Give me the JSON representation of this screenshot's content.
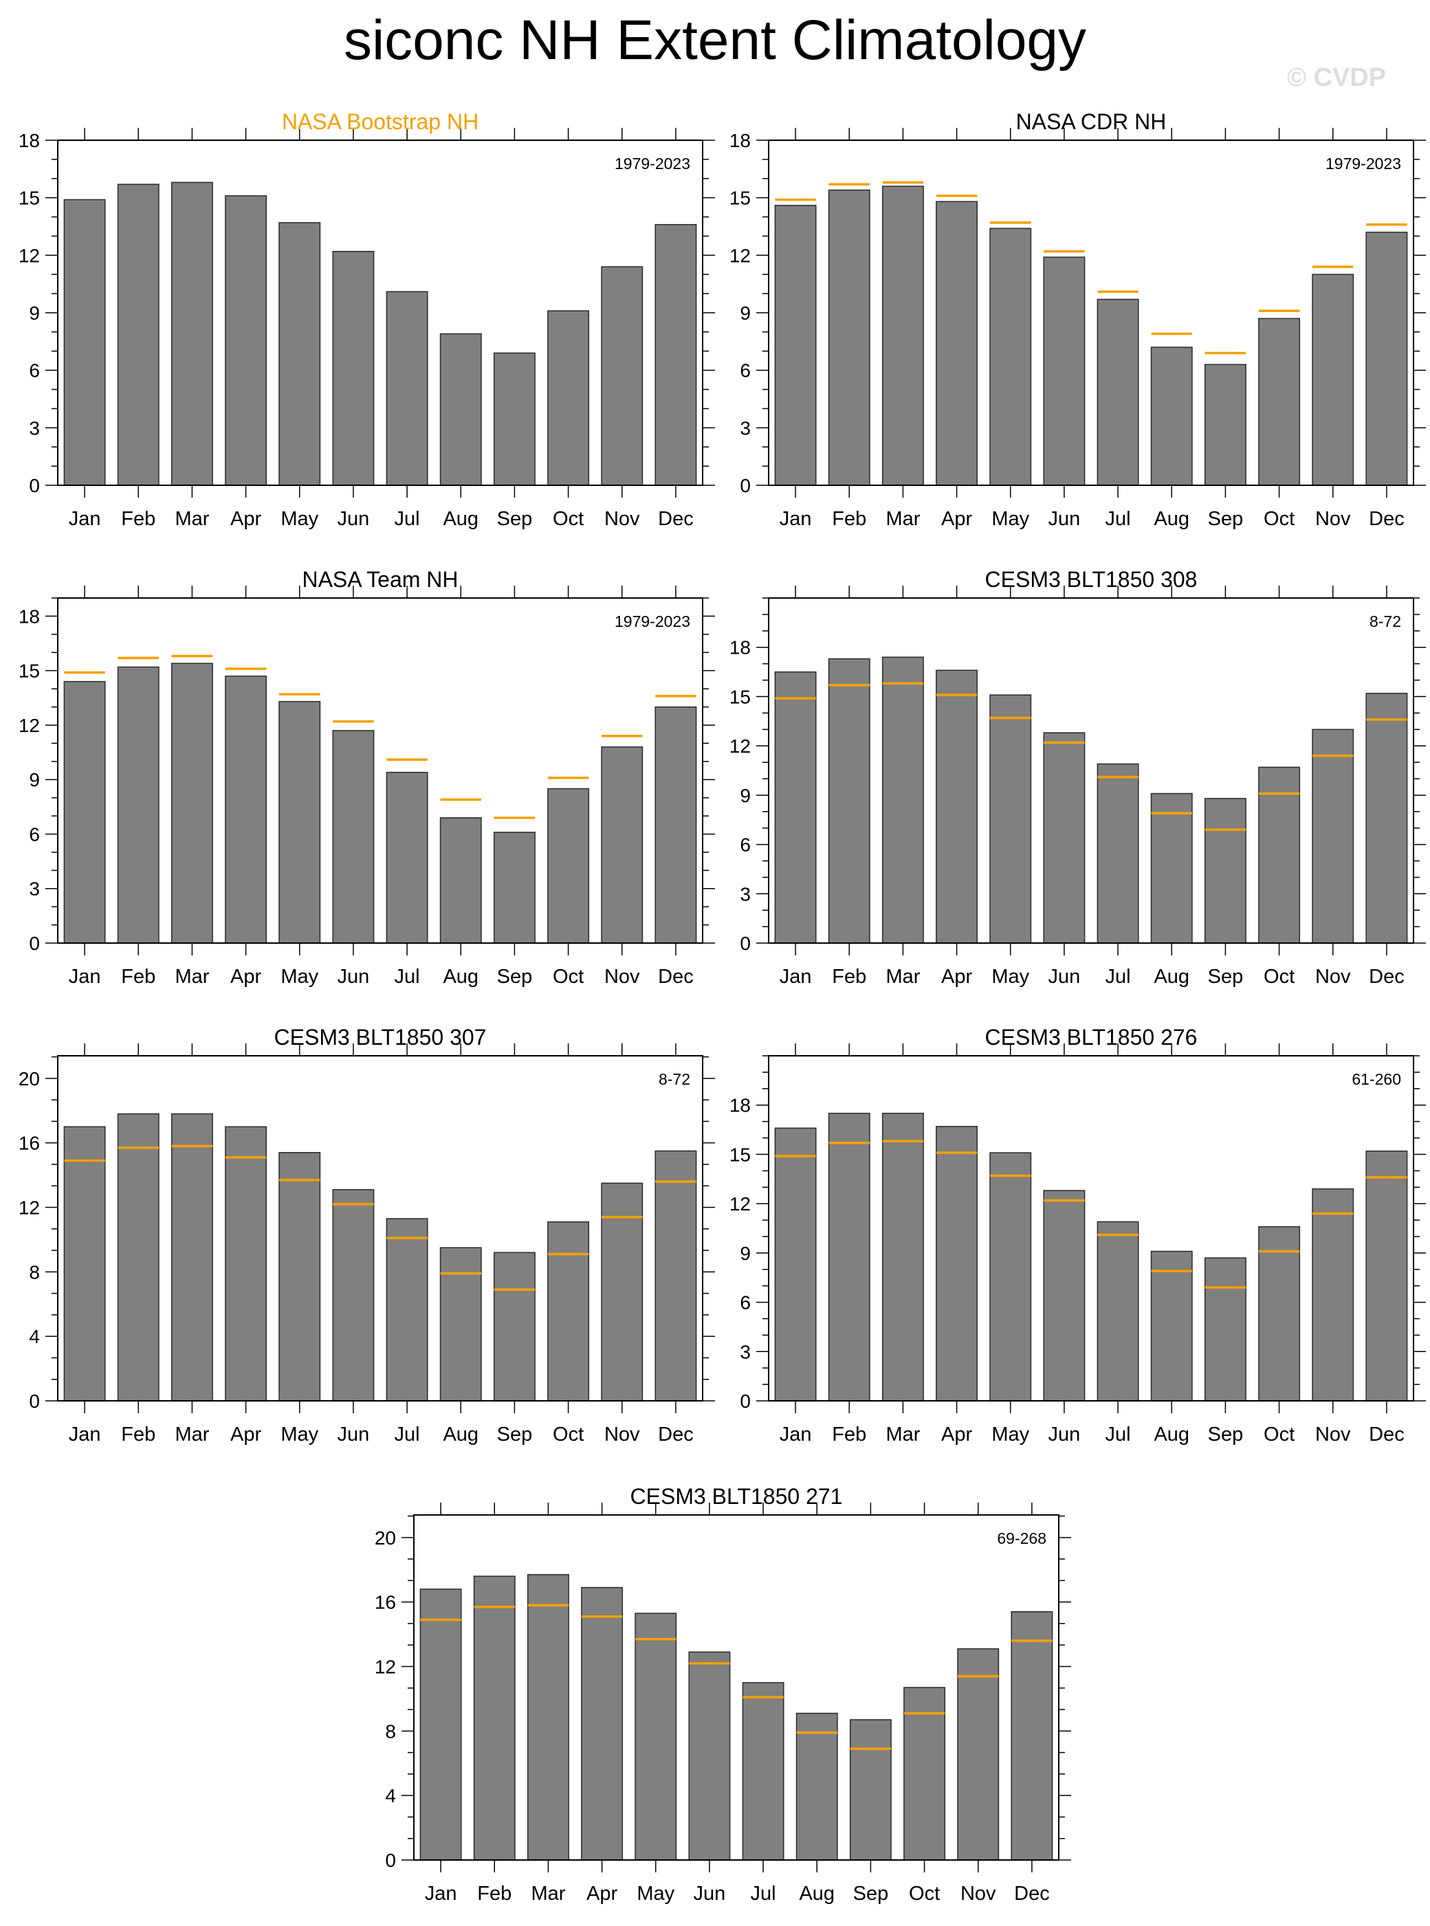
{
  "title": "siconc NH Extent Climatology",
  "watermark": "© CVDP",
  "colors": {
    "bar_fill": "#808080",
    "bar_stroke": "#2a2a2a",
    "obs_line": "#f5a000",
    "obs_title": "#f5a000",
    "axis": "#000000"
  },
  "months": [
    "Jan",
    "Feb",
    "Mar",
    "Apr",
    "May",
    "Jun",
    "Jul",
    "Aug",
    "Sep",
    "Oct",
    "Nov",
    "Dec"
  ],
  "reference_obs": {
    "name": "NASA Bootstrap NH",
    "values": [
      14.9,
      15.7,
      15.8,
      15.1,
      13.7,
      12.2,
      10.1,
      7.9,
      6.9,
      9.1,
      11.4,
      13.6
    ]
  },
  "chart_data": [
    {
      "type": "bar",
      "title": "NASA Bootstrap NH",
      "title_highlight": true,
      "period": "1979-2023",
      "ylim": [
        0,
        18
      ],
      "yticks": [
        0,
        3,
        6,
        9,
        12,
        15,
        18
      ],
      "ytick_labels": [
        "0",
        "3",
        "6",
        "9",
        "12",
        "15",
        "18"
      ],
      "values": [
        14.9,
        15.7,
        15.8,
        15.1,
        13.7,
        12.2,
        10.1,
        7.9,
        6.9,
        9.1,
        11.4,
        13.6
      ],
      "show_obs": false
    },
    {
      "type": "bar",
      "title": "NASA CDR NH",
      "title_highlight": false,
      "period": "1979-2023",
      "ylim": [
        0,
        18
      ],
      "yticks": [
        0,
        3,
        6,
        9,
        12,
        15,
        18
      ],
      "ytick_labels": [
        "0",
        "3",
        "6",
        "9",
        "12",
        "15",
        "18"
      ],
      "values": [
        14.6,
        15.4,
        15.6,
        14.8,
        13.4,
        11.9,
        9.7,
        7.2,
        6.3,
        8.7,
        11.0,
        13.2
      ],
      "show_obs": true
    },
    {
      "type": "bar",
      "title": "NASA Team NH",
      "title_highlight": false,
      "period": "1979-2023",
      "ylim": [
        0,
        19
      ],
      "yticks": [
        0,
        3,
        6,
        9,
        12,
        15,
        18
      ],
      "ytick_labels": [
        "0",
        "3",
        "6",
        "9",
        "12",
        "15",
        "18"
      ],
      "values": [
        14.4,
        15.2,
        15.4,
        14.7,
        13.3,
        11.7,
        9.4,
        6.9,
        6.1,
        8.5,
        10.8,
        13.0
      ],
      "show_obs": true
    },
    {
      "type": "bar",
      "title": "CESM3 BLT1850 308",
      "title_highlight": false,
      "period": "8-72",
      "ylim": [
        0,
        21
      ],
      "yticks": [
        0,
        3,
        6,
        9,
        12,
        15,
        18
      ],
      "ytick_labels": [
        "0",
        "3",
        "6",
        "9",
        "12",
        "15",
        "18"
      ],
      "values": [
        16.5,
        17.3,
        17.4,
        16.6,
        15.1,
        12.8,
        10.9,
        9.1,
        8.8,
        10.7,
        13.0,
        15.2
      ],
      "show_obs": true
    },
    {
      "type": "bar",
      "title": "CESM3 BLT1850 307",
      "title_highlight": false,
      "period": "8-72",
      "ylim": [
        0,
        21.4
      ],
      "yticks": [
        0,
        4,
        8,
        12,
        16,
        20
      ],
      "ytick_labels": [
        "0",
        "4",
        "8",
        "12",
        "16",
        "20"
      ],
      "values": [
        17.0,
        17.8,
        17.8,
        17.0,
        15.4,
        13.1,
        11.3,
        9.5,
        9.2,
        11.1,
        13.5,
        15.5
      ],
      "show_obs": true
    },
    {
      "type": "bar",
      "title": "CESM3 BLT1850 276",
      "title_highlight": false,
      "period": "61-260",
      "ylim": [
        0,
        21
      ],
      "yticks": [
        0,
        3,
        6,
        9,
        12,
        15,
        18
      ],
      "ytick_labels": [
        "0",
        "3",
        "6",
        "9",
        "12",
        "15",
        "18"
      ],
      "values": [
        16.6,
        17.5,
        17.5,
        16.7,
        15.1,
        12.8,
        10.9,
        9.1,
        8.7,
        10.6,
        12.9,
        15.2
      ],
      "show_obs": true
    },
    {
      "type": "bar",
      "title": "CESM3 BLT1850 271",
      "title_highlight": false,
      "period": "69-268",
      "ylim": [
        0,
        21.4
      ],
      "yticks": [
        0,
        4,
        8,
        12,
        16,
        20
      ],
      "ytick_labels": [
        "0",
        "4",
        "8",
        "12",
        "16",
        "20"
      ],
      "values": [
        16.8,
        17.6,
        17.7,
        16.9,
        15.3,
        12.9,
        11.0,
        9.1,
        8.7,
        10.7,
        13.1,
        15.4
      ],
      "show_obs": true
    }
  ]
}
